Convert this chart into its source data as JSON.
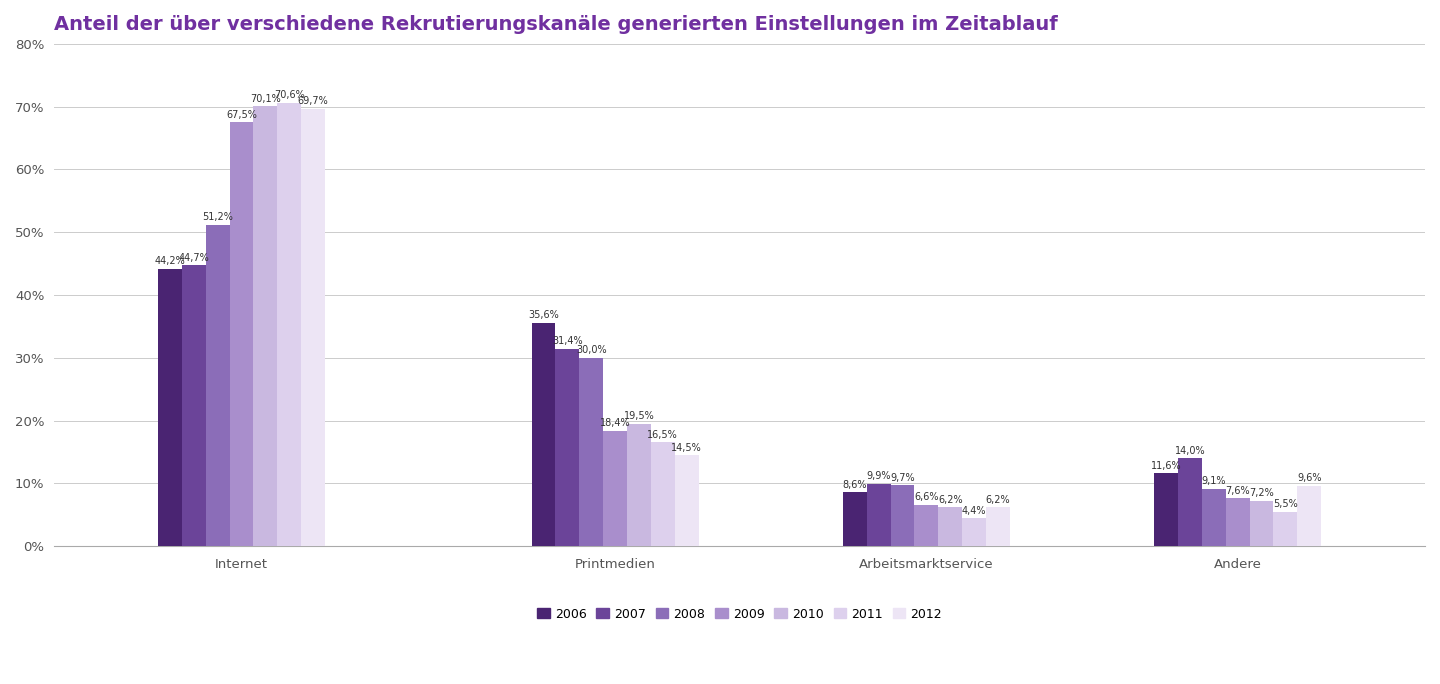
{
  "title": "Anteil der über verschiedene Rekrutierungskanäle generierten Einstellungen im Zeitablauf",
  "categories": [
    "Internet",
    "Printmedien",
    "Arbeitsmarktservice",
    "Andere"
  ],
  "years": [
    "2006",
    "2007",
    "2008",
    "2009",
    "2010",
    "2011",
    "2012"
  ],
  "colors": [
    "#4a2472",
    "#6b4499",
    "#8b6db8",
    "#a98ecc",
    "#c9b8e0",
    "#ddd0ed",
    "#ede5f5"
  ],
  "values": {
    "Internet": [
      44.2,
      44.7,
      51.2,
      67.5,
      70.1,
      70.6,
      69.7
    ],
    "Printmedien": [
      35.6,
      31.4,
      30.0,
      18.4,
      19.5,
      16.5,
      14.5
    ],
    "Arbeitsmarktservice": [
      8.6,
      9.9,
      9.7,
      6.6,
      6.2,
      4.4,
      6.2
    ],
    "Andere": [
      11.6,
      14.0,
      9.1,
      7.6,
      7.2,
      5.5,
      9.6
    ]
  },
  "ylim": [
    0,
    80
  ],
  "yticks": [
    0,
    10,
    20,
    30,
    40,
    50,
    60,
    70,
    80
  ],
  "ytick_labels": [
    "0%",
    "10%",
    "20%",
    "30%",
    "40%",
    "50%",
    "60%",
    "70%",
    "80%"
  ],
  "title_color": "#7030a0",
  "title_fontsize": 14,
  "bar_width": 0.115,
  "group_centers": [
    1.0,
    2.8,
    4.3,
    5.8
  ],
  "background_color": "#ffffff",
  "plot_bg_color": "#ffffff",
  "grid_color": "#cccccc",
  "label_fontsize": 7.0,
  "tick_fontsize": 9.5
}
